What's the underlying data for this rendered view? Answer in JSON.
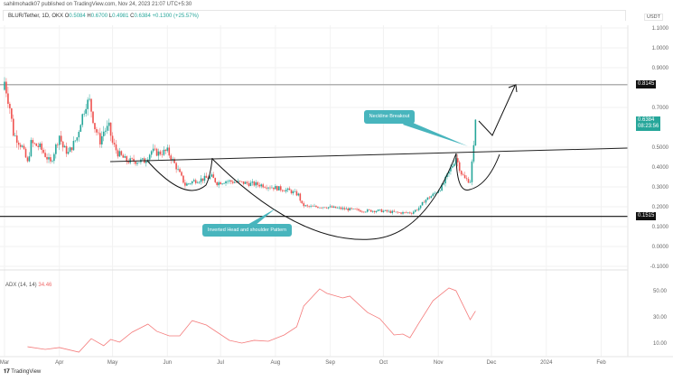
{
  "header": {
    "published": "sahilmohadk07 published on TradingView.com, Nov 24, 2023 21:07 UTC+5:30",
    "symbol": "BLUR/Tether, 1D, OKX",
    "open_label": "O",
    "open": "0.5084",
    "high_label": "H",
    "high": "0.6700",
    "low_label": "L",
    "low": "0.4981",
    "close_label": "C",
    "close": "0.6384",
    "change": "+0.1300 (+25.57%)"
  },
  "currency": "USDT",
  "price_tags": {
    "resistance": "0.8145",
    "last_price": "0.6384",
    "countdown": "08:23:56",
    "support": "0.1515"
  },
  "annotations": {
    "neckline": "Neckline Breakout",
    "pattern": "Inverted Head and shoulder Pattern"
  },
  "indicator": {
    "name": "ADX (14, 14)",
    "value": "34.46"
  },
  "footer": {
    "logo": "TradingView"
  },
  "colors": {
    "up": "#26a69a",
    "down": "#ef5350",
    "adx": "#f47a7a",
    "callout": "#48b5bd"
  },
  "chart_data": {
    "type": "candlestick",
    "title": "BLUR/Tether, 1D, OKX",
    "price_axis_ticks": [
      "1.1000",
      "1.0000",
      "0.9000",
      "0.7000",
      "0.5000",
      "0.4000",
      "0.3000",
      "0.2000",
      "0.1000",
      "0.0000",
      "-0.1000"
    ],
    "price_axis_values": [
      1.1,
      1.0,
      0.9,
      0.7,
      0.5,
      0.4,
      0.3,
      0.2,
      0.1,
      0.0,
      -0.1
    ],
    "adx_axis_ticks": [
      "50.00",
      "30.00",
      "10.00"
    ],
    "adx_axis_values": [
      50,
      30,
      10
    ],
    "x_ticks": [
      "Mar",
      "Apr",
      "May",
      "Jun",
      "Jul",
      "Aug",
      "Sep",
      "Oct",
      "Nov",
      "Dec",
      "2024",
      "Feb"
    ],
    "x_tick_days": [
      0,
      31,
      61,
      92,
      122,
      153,
      184,
      214,
      245,
      275,
      306,
      337
    ],
    "x_unit": "days since Mar 1 2023",
    "close_keypoints": [
      [
        0,
        0.83
      ],
      [
        3,
        0.7
      ],
      [
        5,
        0.57
      ],
      [
        10,
        0.5
      ],
      [
        13,
        0.42
      ],
      [
        15,
        0.52
      ],
      [
        20,
        0.5
      ],
      [
        26,
        0.42
      ],
      [
        31,
        0.56
      ],
      [
        33,
        0.5
      ],
      [
        36,
        0.47
      ],
      [
        41,
        0.55
      ],
      [
        43,
        0.63
      ],
      [
        46,
        0.72
      ],
      [
        48,
        0.73
      ],
      [
        51,
        0.6
      ],
      [
        54,
        0.53
      ],
      [
        56,
        0.58
      ],
      [
        59,
        0.6
      ],
      [
        61,
        0.52
      ],
      [
        64,
        0.47
      ],
      [
        69,
        0.43
      ],
      [
        74,
        0.43
      ],
      [
        79,
        0.43
      ],
      [
        83,
        0.48
      ],
      [
        87,
        0.47
      ],
      [
        92,
        0.48
      ],
      [
        97,
        0.4
      ],
      [
        102,
        0.31
      ],
      [
        107,
        0.33
      ],
      [
        112,
        0.34
      ],
      [
        117,
        0.35
      ],
      [
        120,
        0.32
      ],
      [
        125,
        0.33
      ],
      [
        135,
        0.32
      ],
      [
        145,
        0.31
      ],
      [
        156,
        0.29
      ],
      [
        161,
        0.28
      ],
      [
        166,
        0.26
      ],
      [
        168,
        0.21
      ],
      [
        171,
        0.2
      ],
      [
        181,
        0.2
      ],
      [
        191,
        0.19
      ],
      [
        202,
        0.18
      ],
      [
        212,
        0.18
      ],
      [
        222,
        0.17
      ],
      [
        230,
        0.17
      ],
      [
        235,
        0.2
      ],
      [
        237,
        0.23
      ],
      [
        242,
        0.26
      ],
      [
        247,
        0.3
      ],
      [
        253,
        0.41
      ],
      [
        255,
        0.45
      ],
      [
        258,
        0.37
      ],
      [
        260,
        0.34
      ],
      [
        263,
        0.33
      ],
      [
        265,
        0.51
      ],
      [
        266,
        0.6384
      ]
    ],
    "horizontal_levels": [
      0.8145,
      0.1515
    ],
    "adx_series": [
      [
        13,
        7.2
      ],
      [
        23,
        5.2
      ],
      [
        31,
        6.6
      ],
      [
        42,
        3.1
      ],
      [
        49,
        13.4
      ],
      [
        56,
        8.0
      ],
      [
        60,
        12.8
      ],
      [
        65,
        10.7
      ],
      [
        72,
        18.3
      ],
      [
        81,
        24.5
      ],
      [
        86,
        19.0
      ],
      [
        93,
        15.5
      ],
      [
        99,
        15.5
      ],
      [
        106,
        27.2
      ],
      [
        114,
        23.8
      ],
      [
        127,
        12.1
      ],
      [
        134,
        10.0
      ],
      [
        141,
        12.1
      ],
      [
        149,
        11.4
      ],
      [
        158,
        16.2
      ],
      [
        165,
        22.4
      ],
      [
        169,
        38.3
      ],
      [
        178,
        51.4
      ],
      [
        182,
        48.0
      ],
      [
        191,
        44.5
      ],
      [
        195,
        45.9
      ],
      [
        205,
        33.4
      ],
      [
        212,
        28.6
      ],
      [
        220,
        16.2
      ],
      [
        225,
        16.9
      ],
      [
        229,
        14.1
      ],
      [
        234,
        25.2
      ],
      [
        242,
        42.4
      ],
      [
        251,
        52.1
      ],
      [
        255,
        50.0
      ],
      [
        263,
        27.9
      ],
      [
        266,
        34.46
      ]
    ]
  }
}
